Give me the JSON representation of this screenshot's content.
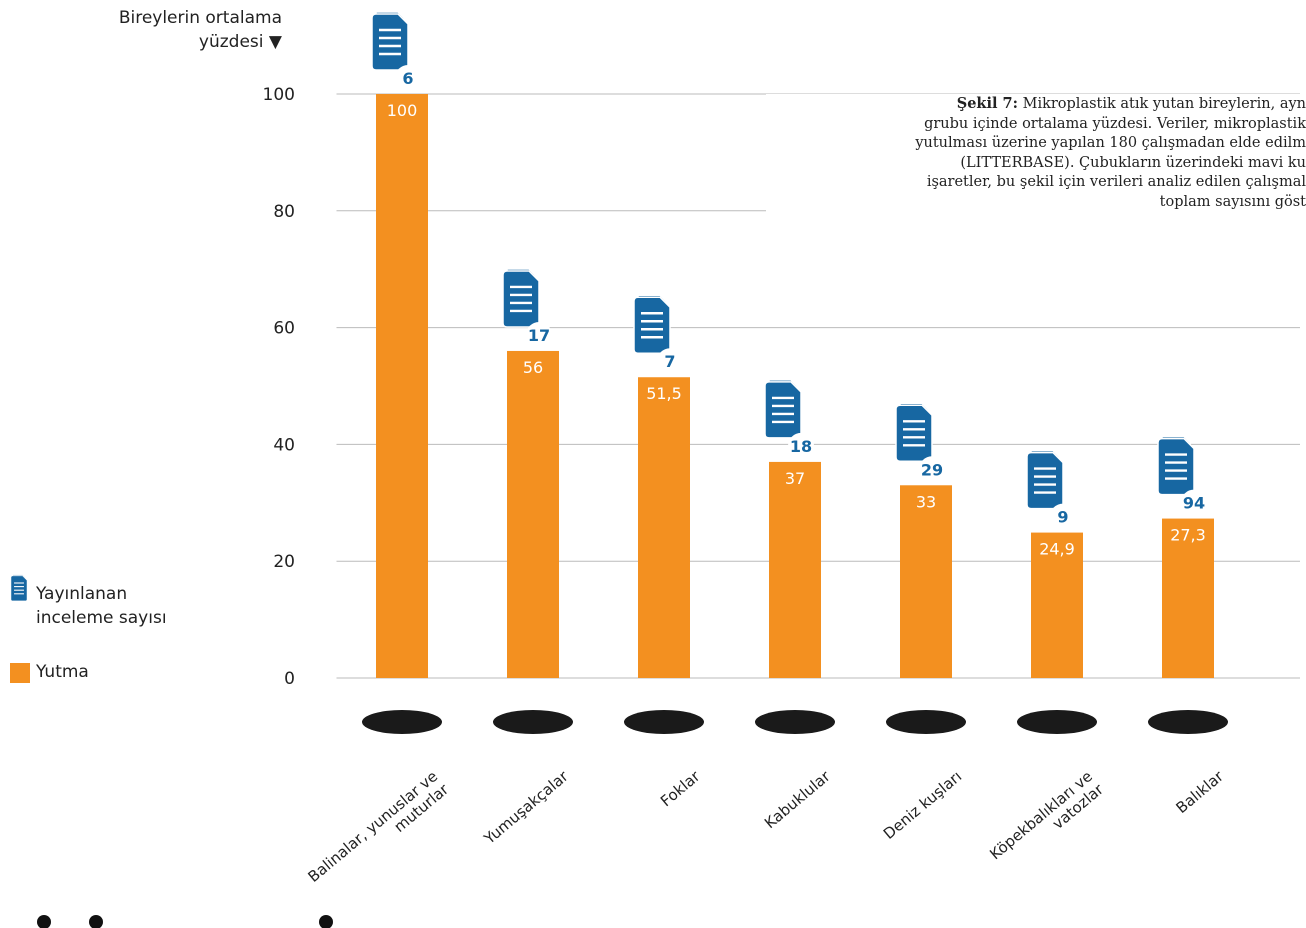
{
  "chart_data": {
    "type": "bar",
    "y_axis_label": "Bireylerin ortalama\nyüzdesi ▼",
    "categories": [
      "Balinalar, yunuslar ve\nmuturlar",
      "Yumuşakçalar",
      "Foklar",
      "Kabuklular",
      "Deniz kuşları",
      "Köpekbalıkları ve\nvatozlar",
      "Balıklar"
    ],
    "series": [
      {
        "name": "Yutma",
        "color": "#f39020",
        "values": [
          100,
          56,
          51.5,
          37,
          33,
          24.9,
          27.3
        ],
        "value_labels": [
          "100",
          "56",
          "51,5",
          "37",
          "33",
          "24,9",
          "27,3"
        ]
      }
    ],
    "review_counts": {
      "name": "Yayınlanan\ninceleme sayısı",
      "color": "#1767a2",
      "values": [
        6,
        17,
        7,
        18,
        29,
        9,
        94
      ]
    },
    "ylim": [
      0,
      100
    ],
    "yticks": [
      0,
      20,
      40,
      60,
      80,
      100
    ],
    "grid": true,
    "caption": {
      "bold": "Şekil 7:",
      "lines": [
        "Mikroplastik atık yutan bireylerin, ayn",
        "grubu içinde ortalama yüzdesi. Veriler, mikroplastik",
        "yutulması üzerine yapılan 180 çalışmadan elde edilm",
        "(LITTERBASE). Çubukların üzerindeki mavi ku",
        "işaretler, bu şekil için verileri analiz edilen çalışmal",
        "toplam sayısını göst"
      ]
    }
  }
}
